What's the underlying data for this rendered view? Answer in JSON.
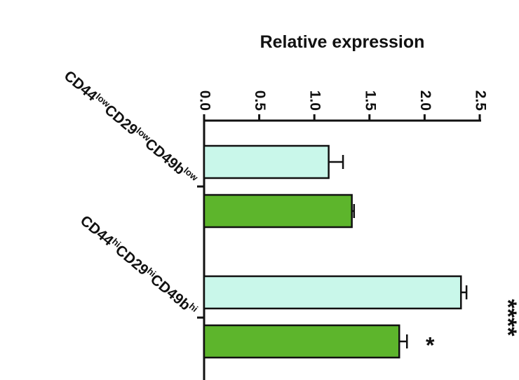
{
  "chart_data": {
    "type": "bar",
    "orientation": "horizontal",
    "xlabel": "Relative expression",
    "categories": [
      [
        [
          "CD44",
          "low"
        ],
        [
          "CD29",
          "low"
        ],
        [
          "CD49b",
          "low"
        ]
      ],
      [
        [
          "CD44",
          "hi"
        ],
        [
          "CD29",
          "hi"
        ],
        [
          "CD49b",
          "hi"
        ]
      ]
    ],
    "series": [
      {
        "color": "#c9f7ea",
        "values": [
          1.13,
          2.33
        ],
        "errors": [
          0.13,
          0.05
        ]
      },
      {
        "color": "#5db52c",
        "values": [
          1.34,
          1.77
        ],
        "errors": [
          0.02,
          0.07
        ]
      }
    ],
    "xlim": [
      0,
      2.5
    ],
    "xticks": [
      {
        "value": 0,
        "label": "0.0"
      },
      0.5,
      {
        "value": 1,
        "label": "1.0"
      },
      1.5,
      {
        "value": 2,
        "label": "2.0"
      },
      2.5
    ],
    "annotations": [
      {
        "text": "****",
        "series": 0,
        "category": 1
      },
      {
        "text": "*",
        "series": 1,
        "category": 1
      }
    ]
  }
}
